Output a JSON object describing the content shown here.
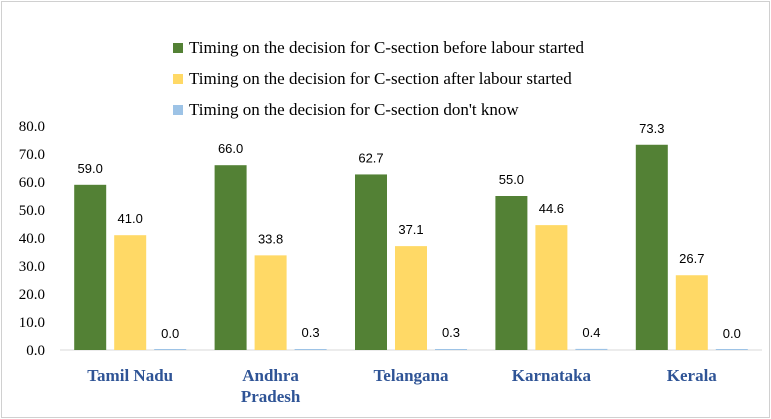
{
  "chart_data": {
    "type": "bar",
    "categories": [
      "Tamil Nadu",
      "Andhra Pradesh",
      "Telangana",
      "Karnataka",
      "Kerala"
    ],
    "category_lines": [
      [
        "Tamil Nadu"
      ],
      [
        "Andhra",
        "Pradesh"
      ],
      [
        "Telangana"
      ],
      [
        "Karnataka"
      ],
      [
        "Kerala"
      ]
    ],
    "series": [
      {
        "name": "Timing on the decision for C-section before labour started",
        "color": "#538135",
        "values": [
          59.0,
          66.0,
          62.7,
          55.0,
          73.3
        ]
      },
      {
        "name": "Timing on the decision for C-section after labour started",
        "color": "#ffd966",
        "values": [
          41.0,
          33.8,
          37.1,
          44.6,
          26.7
        ]
      },
      {
        "name": "Timing on the decision for C-section don't know",
        "color": "#9dc3e6",
        "values": [
          0.0,
          0.3,
          0.3,
          0.4,
          0.0
        ]
      }
    ],
    "ylim": [
      0,
      80
    ],
    "yticks": [
      "0.0",
      "10.0",
      "20.0",
      "30.0",
      "40.0",
      "50.0",
      "60.0",
      "70.0",
      "80.0"
    ],
    "legend_position": "top-right",
    "grid": false
  }
}
